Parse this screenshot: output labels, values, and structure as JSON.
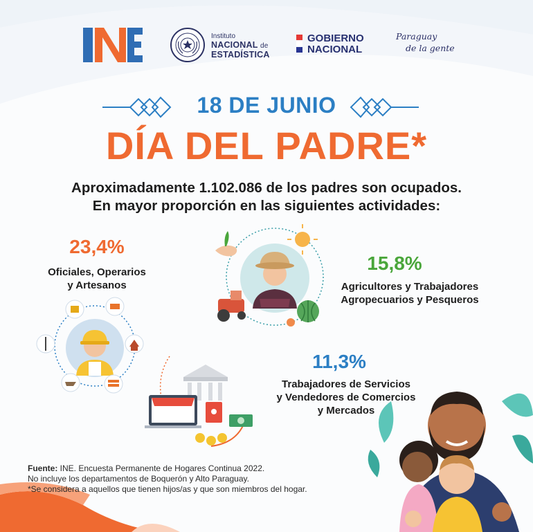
{
  "header": {
    "ine_logo": "INE",
    "institute_line1": "Instituto",
    "institute_line2": "NACIONAL",
    "institute_de": "de",
    "institute_line3": "ESTADÍSTICA",
    "seal_text": "REPÚBLICA DEL PARAGUAY",
    "gobierno_line1": "GOBIERNO",
    "gobierno_line2": "NACIONAL",
    "slogan_line1": "Paraguay",
    "slogan_line2": "de la gente"
  },
  "title": {
    "date": "18 DE JUNIO",
    "main": "DÍA DEL PADRE*"
  },
  "intro": {
    "line1": "Aproximadamente 1.102.086 de los padres son ocupados.",
    "line2": "En mayor proporción en las siguientes actividades:"
  },
  "stats": [
    {
      "percent": "23,4%",
      "line1": "Oficiales, Operarios",
      "line2": "y Artesanos",
      "color": "#ef6a31"
    },
    {
      "percent": "15,8%",
      "line1": "Agricultores  y Trabajadores",
      "line2": "Agropecuarios y Pesqueros",
      "color": "#4aa63b"
    },
    {
      "percent": "11,3%",
      "line1": "Trabajadores de Servicios",
      "line2": "y Vendedores de Comercios",
      "line3": "y Mercados",
      "color": "#2c7fc4"
    }
  ],
  "footer": {
    "source_label": "Fuente:",
    "source_text": " INE. Encuesta Permanente de Hogares Continua 2022.",
    "note1": "No incluye los departamentos de Boquerón y Alto Paraguay.",
    "note2": "*Se considera a aquellos que tienen hijos/as y que son miembros del hogar."
  },
  "colors": {
    "orange": "#ef6a31",
    "blue": "#2c7fc4",
    "green": "#4aa63b",
    "navy": "#273070"
  },
  "icons": [
    "ine-logo",
    "paraguay-seal-icon",
    "diamond-ornament-icon",
    "construction-worker-icon",
    "farmer-icon",
    "shop-bank-icon",
    "father-children-illustration"
  ]
}
